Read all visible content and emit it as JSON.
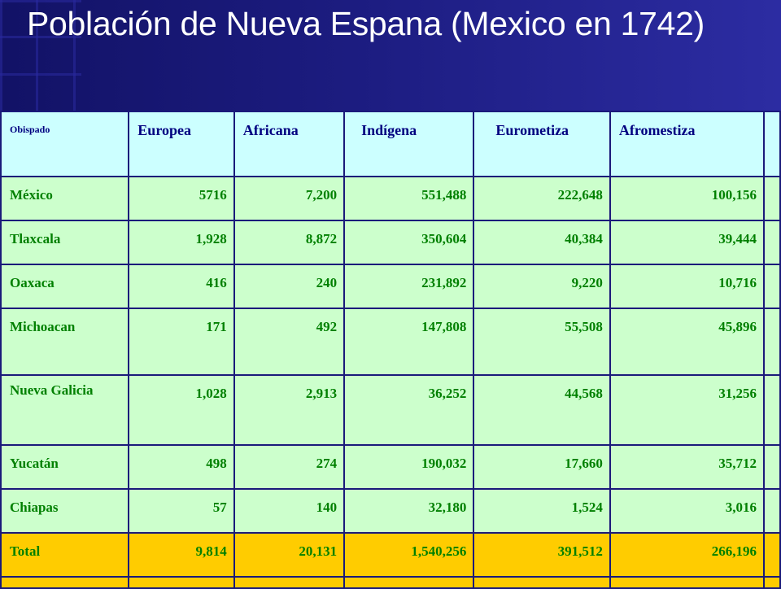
{
  "slide": {
    "title": "Población de Nueva Espana (Mexico en 1742)"
  },
  "table": {
    "headers": [
      "Obispado",
      "Europea",
      "Africana",
      "Indígena",
      "Eurometiza",
      "Afromestiza"
    ],
    "rows": [
      [
        "México",
        "5716",
        "7,200",
        "551,488",
        "222,648",
        "100,156"
      ],
      [
        "Tlaxcala",
        "1,928",
        "8,872",
        "350,604",
        "40,384",
        "39,444"
      ],
      [
        "Oaxaca",
        "416",
        "240",
        "231,892",
        "9,220",
        "10,716"
      ],
      [
        "Michoacan",
        "171",
        "492",
        "147,808",
        "55,508",
        "45,896"
      ],
      [
        "Nueva Galicia",
        "1,028",
        "2,913",
        "36,252",
        "44,568",
        "31,256"
      ],
      [
        "Yucatán",
        "498",
        "274",
        "190,032",
        "17,660",
        "35,712"
      ],
      [
        "Chiapas",
        "57",
        "140",
        "32,180",
        "1,524",
        "3,016"
      ]
    ],
    "total": [
      "Total",
      "9,814",
      "20,131",
      "1,540,256",
      "391,512",
      "266,196"
    ]
  },
  "colors": {
    "header_bg": "#1c1c80",
    "header_row_bg": "#ccffff",
    "body_row_bg": "#ccffcc",
    "total_row_bg": "#ffcc00",
    "cell_text": "#008000",
    "header_text": "#000080"
  }
}
